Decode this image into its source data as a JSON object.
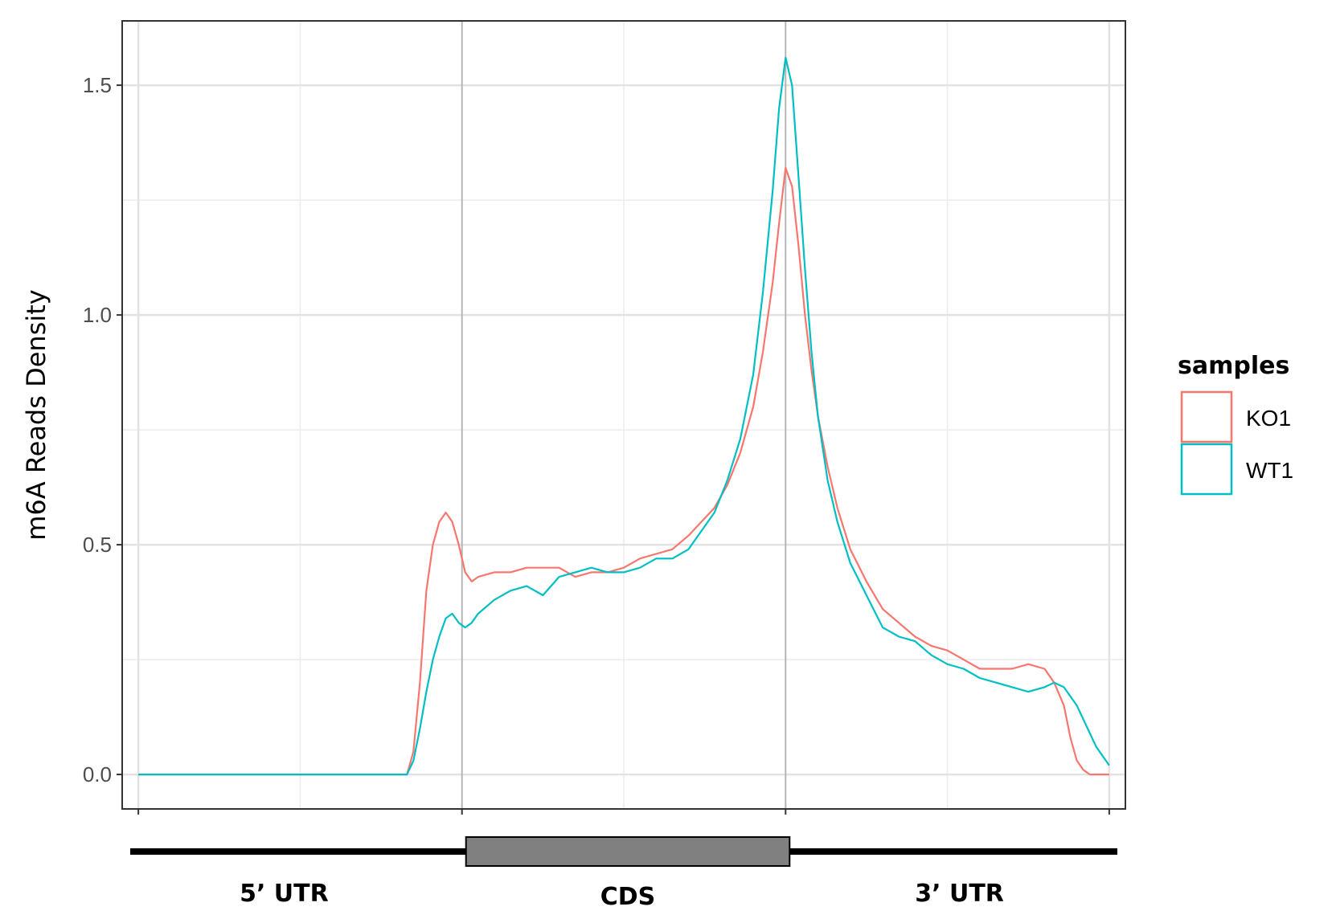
{
  "chart_data": {
    "type": "line",
    "title": "",
    "xlabel": "",
    "ylabel": "m6A Reads Density",
    "ylim": [
      -0.075,
      1.64
    ],
    "xlim": [
      -0.05,
      3.05
    ],
    "grid": true,
    "legend_position": "right",
    "legend_title": "samples",
    "y_ticks": [
      {
        "value": 0.0,
        "label": "0.0"
      },
      {
        "value": 0.5,
        "label": "0.5"
      },
      {
        "value": 1.0,
        "label": "1.0"
      },
      {
        "value": 1.5,
        "label": "1.5"
      }
    ],
    "y_minor": [
      0.25,
      0.75,
      1.25
    ],
    "x_ticks": [
      0,
      1,
      2,
      3
    ],
    "x_minor": [
      0.5,
      1.5,
      2.5
    ],
    "regions": [
      {
        "name": "5’ UTR",
        "start": 0,
        "end": 1
      },
      {
        "name": "CDS",
        "start": 1,
        "end": 2
      },
      {
        "name": "3’ UTR",
        "start": 2,
        "end": 3
      }
    ],
    "series": [
      {
        "name": "KO1",
        "color": "#F8766D",
        "x": [
          0,
          0.5,
          0.83,
          0.85,
          0.87,
          0.89,
          0.91,
          0.93,
          0.95,
          0.97,
          0.99,
          1.01,
          1.03,
          1.05,
          1.1,
          1.15,
          1.2,
          1.25,
          1.3,
          1.35,
          1.4,
          1.45,
          1.5,
          1.55,
          1.6,
          1.65,
          1.7,
          1.74,
          1.78,
          1.82,
          1.86,
          1.9,
          1.93,
          1.96,
          1.98,
          2.0,
          2.02,
          2.04,
          2.06,
          2.08,
          2.1,
          2.13,
          2.16,
          2.2,
          2.25,
          2.3,
          2.35,
          2.4,
          2.45,
          2.5,
          2.55,
          2.6,
          2.65,
          2.7,
          2.75,
          2.8,
          2.83,
          2.86,
          2.88,
          2.9,
          2.92,
          2.94,
          2.96,
          2.98,
          3.0
        ],
        "y": [
          0,
          0,
          0,
          0.05,
          0.2,
          0.4,
          0.5,
          0.55,
          0.57,
          0.55,
          0.5,
          0.44,
          0.42,
          0.43,
          0.44,
          0.44,
          0.45,
          0.45,
          0.45,
          0.43,
          0.44,
          0.44,
          0.45,
          0.47,
          0.48,
          0.49,
          0.52,
          0.55,
          0.58,
          0.63,
          0.7,
          0.8,
          0.92,
          1.07,
          1.2,
          1.32,
          1.28,
          1.15,
          1.0,
          0.88,
          0.78,
          0.67,
          0.58,
          0.49,
          0.42,
          0.36,
          0.33,
          0.3,
          0.28,
          0.27,
          0.25,
          0.23,
          0.23,
          0.23,
          0.24,
          0.23,
          0.2,
          0.15,
          0.08,
          0.03,
          0.01,
          0,
          0,
          0,
          0
        ]
      },
      {
        "name": "WT1",
        "color": "#00BFC4",
        "x": [
          0,
          0.5,
          0.83,
          0.85,
          0.87,
          0.89,
          0.91,
          0.93,
          0.95,
          0.97,
          0.99,
          1.01,
          1.03,
          1.05,
          1.1,
          1.15,
          1.2,
          1.25,
          1.3,
          1.35,
          1.4,
          1.45,
          1.5,
          1.55,
          1.6,
          1.65,
          1.7,
          1.74,
          1.78,
          1.82,
          1.86,
          1.9,
          1.93,
          1.96,
          1.98,
          2.0,
          2.02,
          2.04,
          2.06,
          2.08,
          2.1,
          2.13,
          2.16,
          2.2,
          2.25,
          2.3,
          2.35,
          2.4,
          2.45,
          2.5,
          2.55,
          2.6,
          2.65,
          2.7,
          2.75,
          2.8,
          2.83,
          2.86,
          2.88,
          2.9,
          2.92,
          2.94,
          2.96,
          2.98,
          3.0
        ],
        "y": [
          0,
          0,
          0,
          0.03,
          0.1,
          0.18,
          0.25,
          0.3,
          0.34,
          0.35,
          0.33,
          0.32,
          0.33,
          0.35,
          0.38,
          0.4,
          0.41,
          0.39,
          0.43,
          0.44,
          0.45,
          0.44,
          0.44,
          0.45,
          0.47,
          0.47,
          0.49,
          0.53,
          0.57,
          0.64,
          0.73,
          0.87,
          1.05,
          1.27,
          1.45,
          1.56,
          1.5,
          1.3,
          1.1,
          0.92,
          0.78,
          0.64,
          0.55,
          0.46,
          0.39,
          0.32,
          0.3,
          0.29,
          0.26,
          0.24,
          0.23,
          0.21,
          0.2,
          0.19,
          0.18,
          0.19,
          0.2,
          0.19,
          0.17,
          0.15,
          0.12,
          0.09,
          0.06,
          0.04,
          0.02
        ]
      }
    ]
  }
}
